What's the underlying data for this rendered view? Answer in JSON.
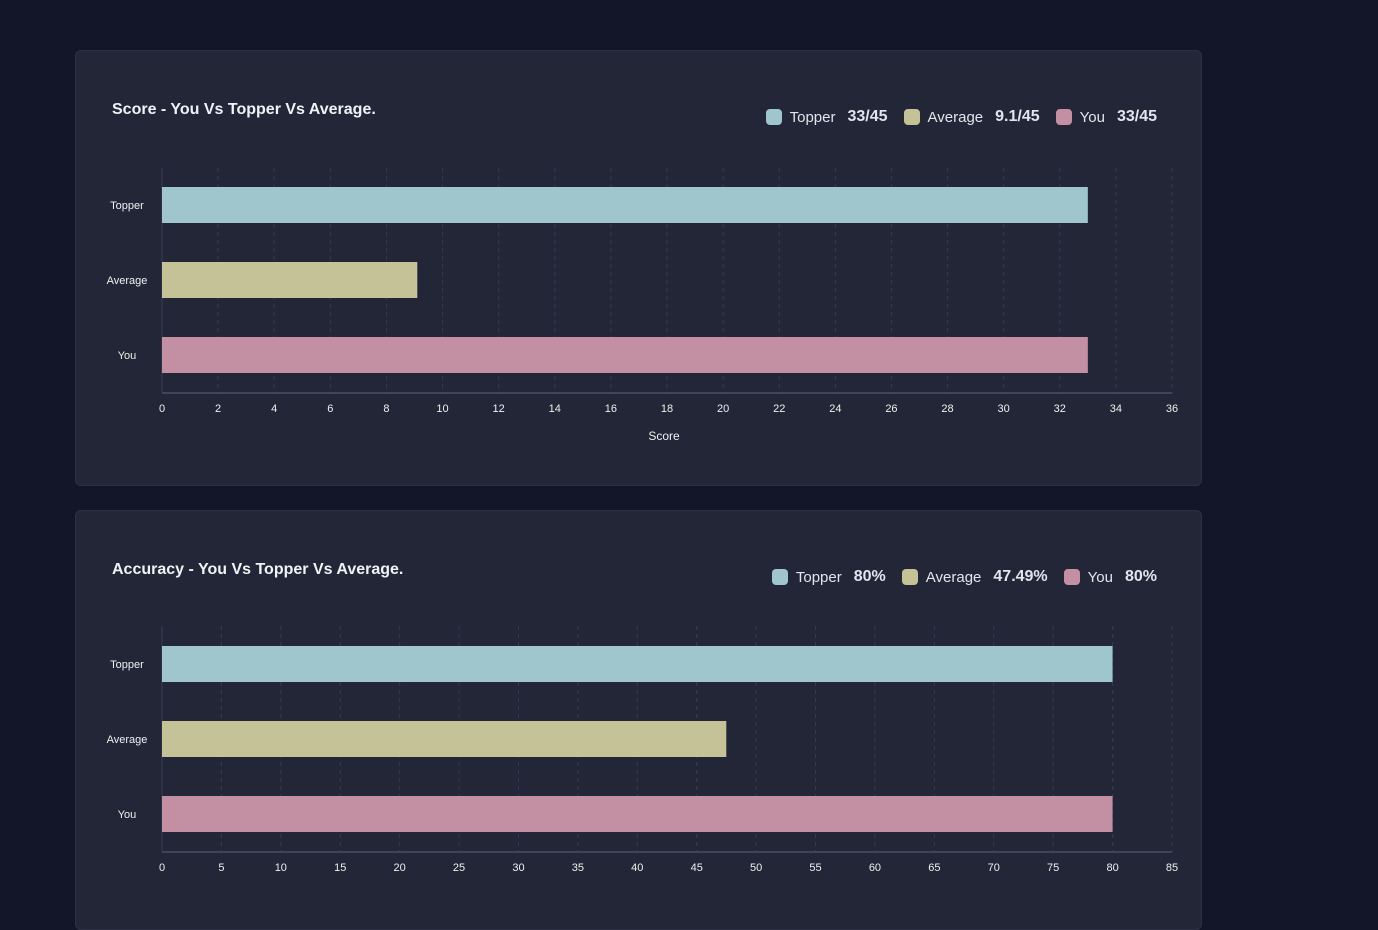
{
  "chart_data": [
    {
      "type": "bar",
      "orientation": "horizontal",
      "title": "Score - You Vs Topper Vs Average.",
      "categories": [
        "Topper",
        "Average",
        "You"
      ],
      "values": [
        33,
        9.1,
        33
      ],
      "colors": [
        "#9ec6cc",
        "#c4c296",
        "#c28fa3"
      ],
      "xlabel": "Score",
      "ylabel": "",
      "xlim": [
        0,
        36
      ],
      "ticks": [
        "0",
        "2",
        "4",
        "6",
        "8",
        "10",
        "12",
        "14",
        "16",
        "18",
        "20",
        "22",
        "24",
        "26",
        "28",
        "30",
        "32",
        "34",
        "36"
      ],
      "grid": true,
      "legend": [
        {
          "name": "Topper",
          "value": "33/45",
          "color": "#9ec6cc"
        },
        {
          "name": "Average",
          "value": "9.1/45",
          "color": "#c4c296"
        },
        {
          "name": "You",
          "value": "33/45",
          "color": "#c28fa3"
        }
      ],
      "legend_position": "top-right"
    },
    {
      "type": "bar",
      "orientation": "horizontal",
      "title": "Accuracy - You Vs Topper Vs Average.",
      "categories": [
        "Topper",
        "Average",
        "You"
      ],
      "values": [
        80,
        47.49,
        80
      ],
      "colors": [
        "#9ec6cc",
        "#c4c296",
        "#c28fa3"
      ],
      "xlabel": "",
      "ylabel": "",
      "xlim": [
        0,
        85
      ],
      "ticks": [
        "0",
        "5",
        "10",
        "15",
        "20",
        "25",
        "30",
        "35",
        "40",
        "45",
        "50",
        "55",
        "60",
        "65",
        "70",
        "75",
        "80",
        "85"
      ],
      "grid": true,
      "legend": [
        {
          "name": "Topper",
          "value": "80%",
          "color": "#9ec6cc"
        },
        {
          "name": "Average",
          "value": "47.49%",
          "color": "#c4c296"
        },
        {
          "name": "You",
          "value": "80%",
          "color": "#c28fa3"
        }
      ],
      "legend_position": "top-right"
    }
  ]
}
